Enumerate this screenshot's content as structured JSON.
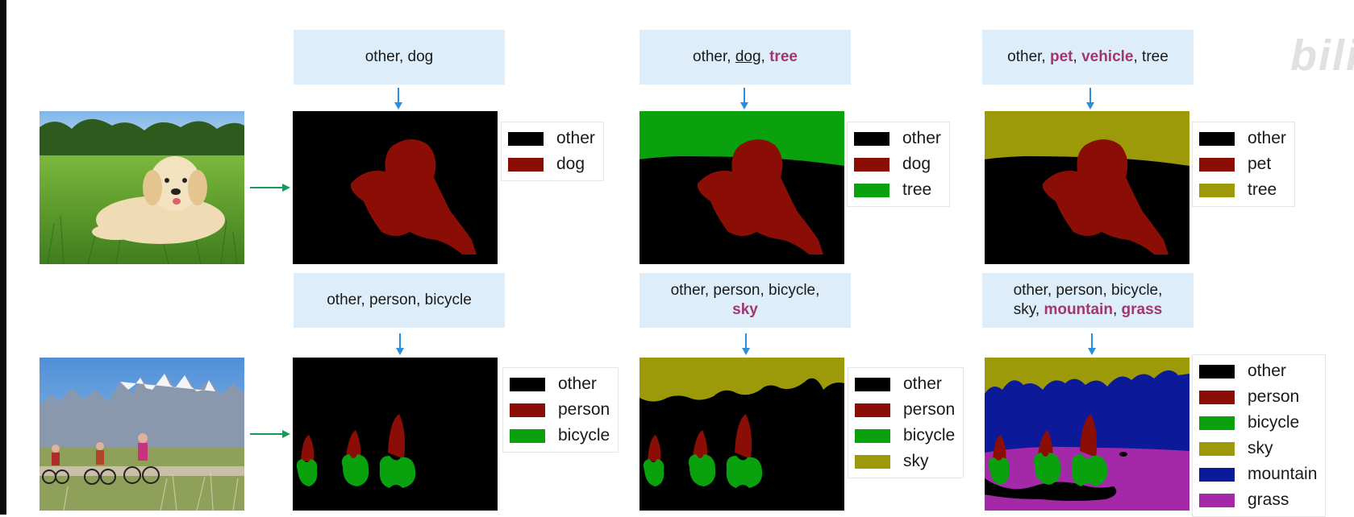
{
  "watermark": "bili",
  "colors": {
    "other": "#000000",
    "dog": "#8b0e06",
    "pet": "#8b0e06",
    "person": "#8b0e06",
    "tree": "#0aa10f",
    "bicycle": "#0aa10f",
    "tree_olive": "#9c9a08",
    "sky": "#9c9a08",
    "mountain": "#0c1a9a",
    "grass": "#a429a8",
    "keyword": "#a23573",
    "prompt_bg": "#ddeefa",
    "arrow_blue": "#2a8fd8",
    "arrow_green": "#1a9a5a"
  },
  "row1": {
    "prompts": [
      {
        "segments": [
          {
            "text": "other, dog",
            "style": "plain"
          }
        ]
      },
      {
        "segments": [
          {
            "text": "other, ",
            "style": "plain"
          },
          {
            "text": "dog",
            "style": "underline"
          },
          {
            "text": ", ",
            "style": "plain"
          },
          {
            "text": "tree",
            "style": "keyword"
          }
        ]
      },
      {
        "segments": [
          {
            "text": "other, ",
            "style": "plain"
          },
          {
            "text": "pet",
            "style": "keyword"
          },
          {
            "text": ", ",
            "style": "plain"
          },
          {
            "text": "vehicle",
            "style": "keyword"
          },
          {
            "text": ", tree",
            "style": "plain"
          }
        ]
      }
    ],
    "legends": [
      [
        {
          "label": "other",
          "color": "#000000"
        },
        {
          "label": "dog",
          "color": "#8b0e06"
        }
      ],
      [
        {
          "label": "other",
          "color": "#000000"
        },
        {
          "label": "dog",
          "color": "#8b0e06"
        },
        {
          "label": "tree",
          "color": "#0aa10f"
        }
      ],
      [
        {
          "label": "other",
          "color": "#000000"
        },
        {
          "label": "pet",
          "color": "#8b0e06"
        },
        {
          "label": "tree",
          "color": "#9c9a08"
        }
      ]
    ]
  },
  "row2": {
    "prompts": [
      {
        "lines": [
          [
            {
              "text": "other, person, bicycle",
              "style": "plain"
            }
          ]
        ]
      },
      {
        "lines": [
          [
            {
              "text": "other, person, bicycle,",
              "style": "plain"
            }
          ],
          [
            {
              "text": "sky",
              "style": "keyword"
            }
          ]
        ]
      },
      {
        "lines": [
          [
            {
              "text": "other, person, bicycle,",
              "style": "plain"
            }
          ],
          [
            {
              "text": "sky, ",
              "style": "plain"
            },
            {
              "text": "mountain",
              "style": "keyword"
            },
            {
              "text": ", ",
              "style": "plain"
            },
            {
              "text": "grass",
              "style": "keyword"
            }
          ]
        ]
      }
    ],
    "legends": [
      [
        {
          "label": "other",
          "color": "#000000"
        },
        {
          "label": "person",
          "color": "#8b0e06"
        },
        {
          "label": "bicycle",
          "color": "#0aa10f"
        }
      ],
      [
        {
          "label": "other",
          "color": "#000000"
        },
        {
          "label": "person",
          "color": "#8b0e06"
        },
        {
          "label": "bicycle",
          "color": "#0aa10f"
        },
        {
          "label": "sky",
          "color": "#9c9a08"
        }
      ],
      [
        {
          "label": "other",
          "color": "#000000"
        },
        {
          "label": "person",
          "color": "#8b0e06"
        },
        {
          "label": "bicycle",
          "color": "#0aa10f"
        },
        {
          "label": "sky",
          "color": "#9c9a08"
        },
        {
          "label": "mountain",
          "color": "#0c1a9a"
        },
        {
          "label": "grass",
          "color": "#a429a8"
        }
      ]
    ]
  }
}
